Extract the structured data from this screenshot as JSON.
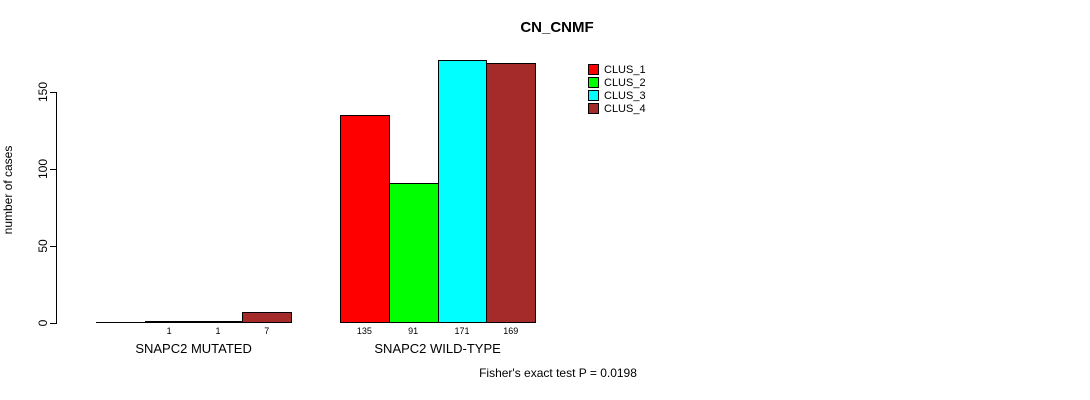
{
  "chart_data": {
    "type": "bar",
    "title": "CN_CNMF",
    "ylabel": "number of cases",
    "xlabel": "",
    "yticks": [
      0,
      50,
      100,
      150
    ],
    "ylim": [
      0,
      175
    ],
    "grid": false,
    "legend_position": "top-right",
    "categories": [
      "SNAPC2 MUTATED",
      "SNAPC2 WILD-TYPE"
    ],
    "series": [
      {
        "name": "CLUS_1",
        "color": "#FF0000",
        "values": [
          0,
          135
        ]
      },
      {
        "name": "CLUS_2",
        "color": "#00FF00",
        "values": [
          1,
          91
        ]
      },
      {
        "name": "CLUS_3",
        "color": "#00FFFF",
        "values": [
          1,
          171
        ]
      },
      {
        "name": "CLUS_4",
        "color": "#A52A2A",
        "values": [
          7,
          169
        ]
      }
    ],
    "groups": [
      {
        "label": "SNAPC2 MUTATED",
        "values": [
          0,
          1,
          1,
          7
        ],
        "bar_labels": [
          "",
          "1",
          "1",
          "7"
        ]
      },
      {
        "label": "SNAPC2 WILD-TYPE",
        "values": [
          135,
          91,
          171,
          169
        ],
        "bar_labels": [
          "135",
          "91",
          "171",
          "169"
        ]
      }
    ],
    "annotation": "Fisher's exact test P = 0.0198"
  }
}
